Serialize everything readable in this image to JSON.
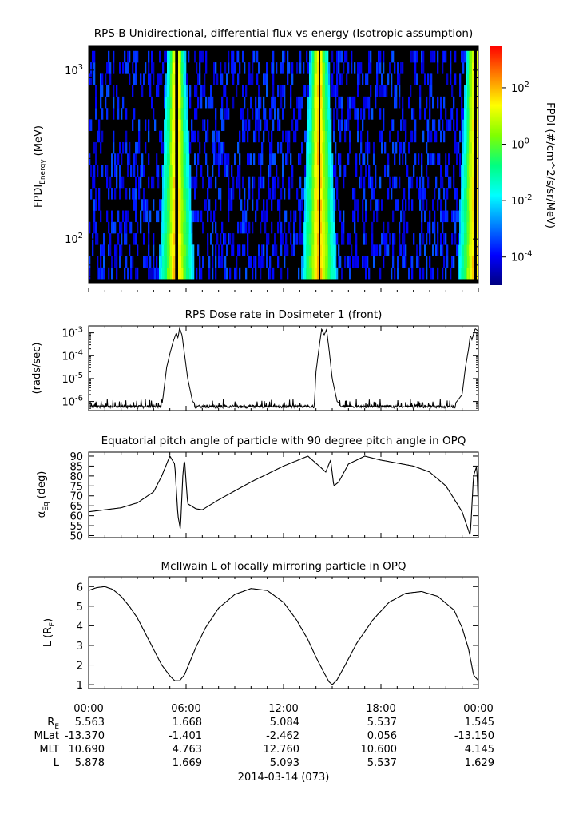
{
  "chart_data": [
    {
      "type": "heatmap",
      "title": "RPS-B  Unidirectional, differential flux vs energy (Isotropic assumption)",
      "ylabel_main": "FPDI",
      "ylabel_sub": "Energy",
      "ylabel_unit": "(MeV)",
      "yscale": "log",
      "ylim": [
        55,
        1400
      ],
      "yticks": [
        {
          "value": 100,
          "base": "10",
          "exp": "2"
        },
        {
          "value": 1000,
          "base": "10",
          "exp": "3"
        }
      ],
      "colorbar": {
        "label": "FPDI (#/cm^2/s/sr/MeV)",
        "log_range": [
          -5,
          3.5
        ],
        "ticks": [
          {
            "value": 2,
            "base": "10",
            "exp": "2"
          },
          {
            "value": 0,
            "base": "10",
            "exp": "0"
          },
          {
            "value": -2,
            "base": "10",
            "exp": "-2"
          },
          {
            "value": -4,
            "base": "10",
            "exp": "-4"
          }
        ],
        "colors": [
          "#00007f",
          "#0000ff",
          "#0080ff",
          "#00ffff",
          "#00ff80",
          "#80ff00",
          "#ffff00",
          "#ff8000",
          "#ff0000"
        ]
      },
      "belt_crossings_hours": [
        5.4,
        14.2,
        23.8
      ],
      "energy_channels": 20
    },
    {
      "type": "line",
      "title": "RPS  Dose rate in Dosimeter 1 (front)",
      "ylabel": "(rads/sec)",
      "yscale": "log",
      "ylim": [
        4e-07,
        0.002
      ],
      "yticks": [
        {
          "value": 0.001,
          "base": "10",
          "exp": "-3"
        },
        {
          "value": 0.0001,
          "base": "10",
          "exp": "-4"
        },
        {
          "value": 1e-05,
          "base": "10",
          "exp": "-5"
        },
        {
          "value": 1e-06,
          "base": "10",
          "exp": "-6"
        }
      ],
      "x_hours": [
        0,
        4.5,
        4.6,
        4.8,
        5.0,
        5.2,
        5.4,
        5.5,
        5.6,
        5.75,
        5.9,
        6.1,
        6.4,
        6.8,
        7.0,
        12.0,
        13.9,
        14.0,
        14.2,
        14.35,
        14.5,
        14.65,
        14.8,
        15.0,
        15.3,
        15.6,
        16.0,
        22.5,
        23.0,
        23.2,
        23.4,
        23.5,
        23.6,
        23.8,
        24.0
      ],
      "values": [
        6e-07,
        6e-07,
        2e-06,
        3e-05,
        0.00012,
        0.0004,
        0.001,
        0.0006,
        0.0016,
        0.0008,
        0.00012,
        1e-05,
        1e-06,
        6e-07,
        7e-07,
        7e-07,
        7e-07,
        2e-05,
        0.00025,
        0.0015,
        0.0008,
        0.0014,
        0.0002,
        1e-05,
        1e-06,
        7e-07,
        7e-07,
        7e-07,
        2e-06,
        3e-05,
        0.0002,
        0.0008,
        0.0005,
        0.0015,
        0.0012
      ],
      "noise_floor": 6e-07
    },
    {
      "type": "line",
      "title": "Equatorial pitch angle of particle with 90 degree pitch angle in OPQ",
      "ylabel": "(deg)",
      "ylabel_sym": "α",
      "ylabel_sub": "Eq",
      "ylim": [
        49,
        92
      ],
      "yticks": [
        90,
        85,
        80,
        75,
        70,
        65,
        60,
        55,
        50
      ],
      "x_hours": [
        0,
        1,
        2,
        3,
        4,
        4.5,
        5.0,
        5.3,
        5.5,
        5.65,
        5.8,
        5.9,
        6.0,
        6.1,
        6.3,
        6.6,
        7.0,
        8.0,
        10.0,
        12.0,
        13.5,
        14.2,
        14.6,
        14.9,
        15.1,
        15.4,
        16.0,
        17.0,
        18.0,
        19.0,
        20.0,
        21.0,
        22.0,
        23.0,
        23.5,
        23.7,
        23.9,
        24.0
      ],
      "values": [
        62,
        63,
        64,
        66.5,
        72,
        80,
        90,
        86,
        60,
        53,
        80,
        89,
        77,
        66,
        65,
        63.5,
        63,
        68,
        77,
        85,
        90,
        85,
        82,
        88,
        75,
        77,
        86,
        90,
        88,
        86.5,
        85,
        82,
        75,
        62,
        50,
        80,
        85,
        64
      ]
    },
    {
      "type": "line",
      "title": "McIlwain L of locally mirroring particle in OPQ",
      "ylabel": "L (R",
      "ylabel_sub": "E",
      "ylabel_close": ")",
      "ylim": [
        0.8,
        6.5
      ],
      "yticks": [
        6,
        5,
        4,
        3,
        2,
        1
      ],
      "x_hours": [
        0,
        0.5,
        1.0,
        1.5,
        2.0,
        2.5,
        3.0,
        3.5,
        4.0,
        4.5,
        5.0,
        5.3,
        5.6,
        5.9,
        6.2,
        6.6,
        7.2,
        8.0,
        9.0,
        10.0,
        11.0,
        12.0,
        12.8,
        13.5,
        14.0,
        14.5,
        14.8,
        15.0,
        15.3,
        15.8,
        16.5,
        17.5,
        18.5,
        19.5,
        20.5,
        21.5,
        22.5,
        23.0,
        23.4,
        23.7,
        24.0
      ],
      "values": [
        5.8,
        5.95,
        6.0,
        5.85,
        5.5,
        5.0,
        4.4,
        3.6,
        2.8,
        2.0,
        1.45,
        1.2,
        1.2,
        1.5,
        2.1,
        2.9,
        3.9,
        4.9,
        5.6,
        5.9,
        5.8,
        5.2,
        4.3,
        3.3,
        2.4,
        1.6,
        1.15,
        1.0,
        1.25,
        2.0,
        3.1,
        4.3,
        5.2,
        5.65,
        5.75,
        5.5,
        4.8,
        3.9,
        2.8,
        1.5,
        1.2
      ]
    }
  ],
  "x_axis": {
    "range_hours": [
      0,
      24
    ],
    "tick_labels": [
      "00:00",
      "06:00",
      "12:00",
      "18:00",
      "00:00"
    ],
    "ephemeris_rows": [
      {
        "label": "R",
        "label_sub": "E",
        "values": [
          "5.563",
          "1.668",
          "5.084",
          "5.537",
          "1.545"
        ]
      },
      {
        "label": "MLat",
        "label_sub": "",
        "values": [
          "-13.370",
          "-1.401",
          "-2.462",
          "0.056",
          "-13.150"
        ]
      },
      {
        "label": "MLT",
        "label_sub": "",
        "values": [
          "10.690",
          "4.763",
          "12.760",
          "10.600",
          "4.145"
        ]
      },
      {
        "label": "L",
        "label_sub": "",
        "values": [
          "5.878",
          "1.669",
          "5.093",
          "5.537",
          "1.629"
        ]
      }
    ],
    "date_label": "2014-03-14 (073)"
  }
}
